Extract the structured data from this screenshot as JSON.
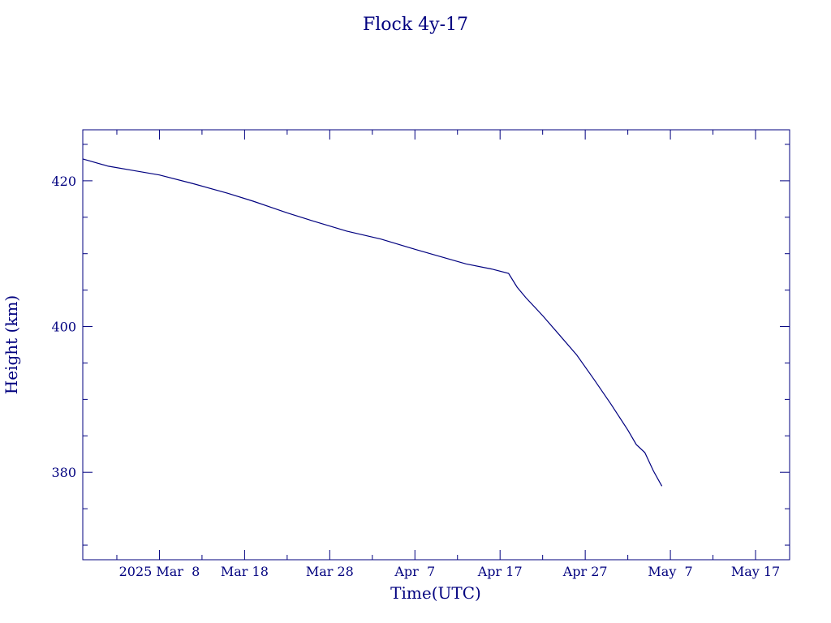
{
  "color": "#00007f",
  "chart_data": {
    "type": "line",
    "title": "Flock 4y-17",
    "xlabel": "Time(UTC)",
    "ylabel": "Height (km)",
    "x_date_axis": true,
    "xlim": [
      "2025-02-27",
      "2025-05-21"
    ],
    "ylim": [
      368,
      427
    ],
    "x_ticks": [
      {
        "date": "2025-03-08",
        "label": "2025 Mar  8"
      },
      {
        "date": "2025-03-18",
        "label": "Mar 18"
      },
      {
        "date": "2025-03-28",
        "label": "Mar 28"
      },
      {
        "date": "2025-04-07",
        "label": "Apr  7"
      },
      {
        "date": "2025-04-17",
        "label": "Apr 17"
      },
      {
        "date": "2025-04-27",
        "label": "Apr 27"
      },
      {
        "date": "2025-05-07",
        "label": "May  7"
      },
      {
        "date": "2025-05-17",
        "label": "May 17"
      }
    ],
    "y_ticks": [
      380,
      400,
      420
    ],
    "series": [
      {
        "name": "",
        "points": [
          {
            "x": "2025-02-27",
            "y": 423.0
          },
          {
            "x": "2025-03-02",
            "y": 422.0
          },
          {
            "x": "2025-03-05",
            "y": 421.4
          },
          {
            "x": "2025-03-08",
            "y": 420.8
          },
          {
            "x": "2025-03-12",
            "y": 419.6
          },
          {
            "x": "2025-03-16",
            "y": 418.3
          },
          {
            "x": "2025-03-19",
            "y": 417.2
          },
          {
            "x": "2025-03-23",
            "y": 415.6
          },
          {
            "x": "2025-03-26",
            "y": 414.5
          },
          {
            "x": "2025-03-30",
            "y": 413.1
          },
          {
            "x": "2025-04-03",
            "y": 412.0
          },
          {
            "x": "2025-04-07",
            "y": 410.6
          },
          {
            "x": "2025-04-10",
            "y": 409.6
          },
          {
            "x": "2025-04-13",
            "y": 408.6
          },
          {
            "x": "2025-04-16",
            "y": 407.9
          },
          {
            "x": "2025-04-18",
            "y": 407.3
          },
          {
            "x": "2025-04-19",
            "y": 405.4
          },
          {
            "x": "2025-04-20",
            "y": 404.0
          },
          {
            "x": "2025-04-22",
            "y": 401.5
          },
          {
            "x": "2025-04-24",
            "y": 398.8
          },
          {
            "x": "2025-04-26",
            "y": 396.1
          },
          {
            "x": "2025-04-28",
            "y": 392.8
          },
          {
            "x": "2025-04-30",
            "y": 389.4
          },
          {
            "x": "2025-05-02",
            "y": 385.8
          },
          {
            "x": "2025-05-03",
            "y": 383.8
          },
          {
            "x": "2025-05-04",
            "y": 382.7
          },
          {
            "x": "2025-05-05",
            "y": 380.2
          },
          {
            "x": "2025-05-06",
            "y": 378.1
          }
        ]
      }
    ]
  }
}
